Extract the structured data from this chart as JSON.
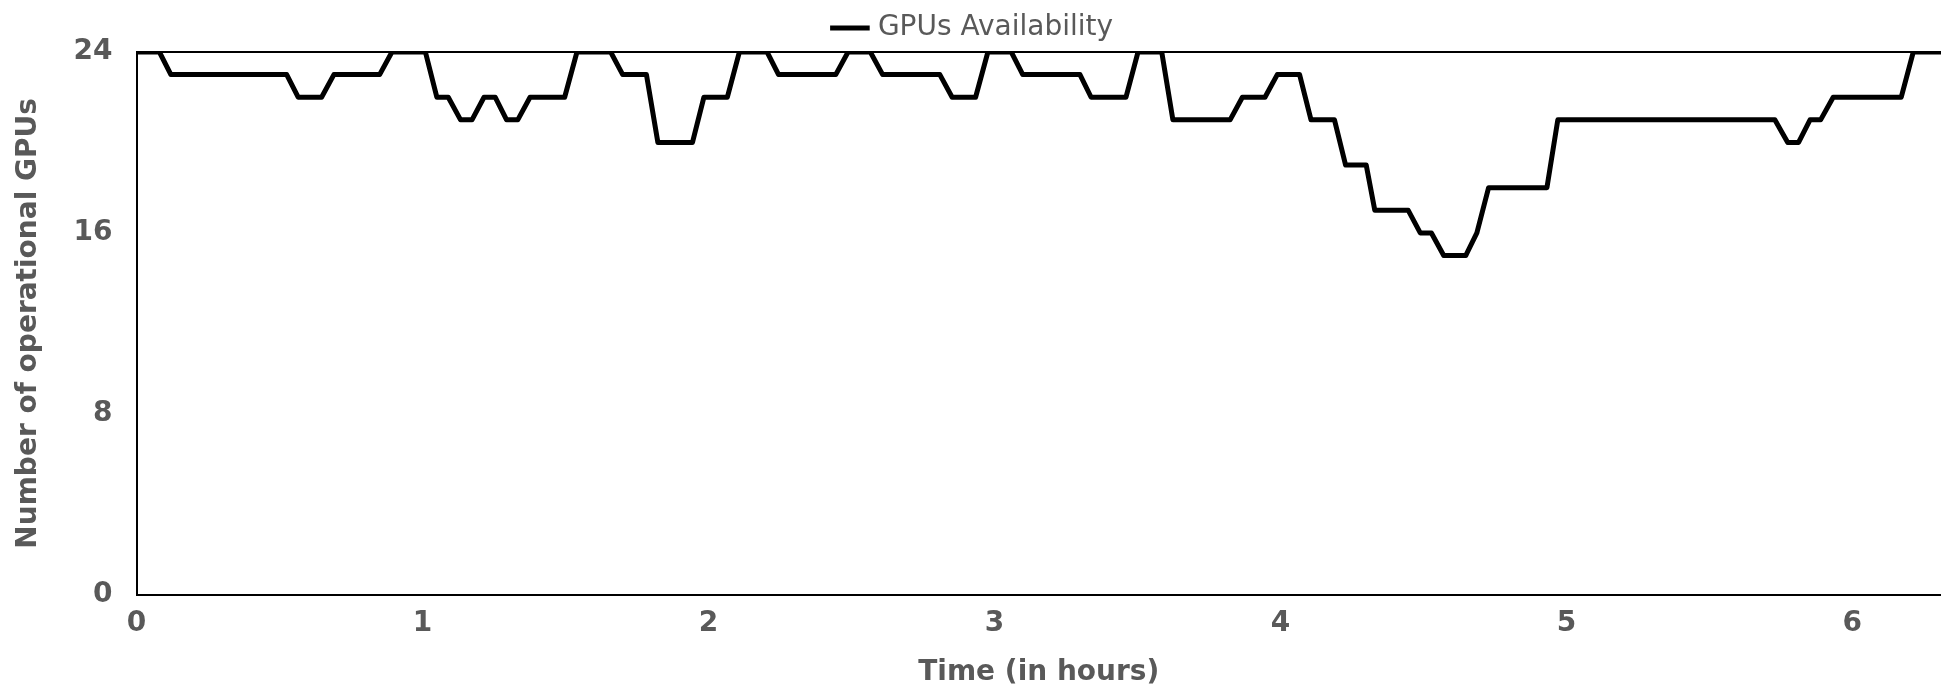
{
  "chart_data": {
    "type": "line",
    "xlabel": "Time (in hours)",
    "ylabel": "Number of operational GPUs",
    "legend": "top",
    "series": [
      {
        "name": "GPUs Availability",
        "color": "#000000",
        "x": [
          0,
          0.08,
          0.12,
          0.525,
          0.565,
          0.647,
          0.69,
          0.85,
          0.893,
          1.01,
          1.05,
          1.09,
          1.133,
          1.173,
          1.215,
          1.254,
          1.294,
          1.333,
          1.376,
          1.497,
          1.54,
          1.658,
          1.7,
          1.783,
          1.823,
          1.944,
          1.984,
          2.066,
          2.108,
          2.205,
          2.245,
          2.445,
          2.488,
          2.566,
          2.609,
          2.809,
          2.852,
          2.934,
          2.977,
          3.059,
          3.099,
          3.299,
          3.338,
          3.46,
          3.502,
          3.585,
          3.624,
          3.824,
          3.867,
          3.946,
          3.989,
          4.067,
          4.107,
          4.189,
          4.228,
          4.3,
          4.33,
          4.447,
          4.489,
          4.528,
          4.571,
          4.648,
          4.687,
          4.728,
          4.932,
          4.97,
          5.729,
          5.774,
          5.812,
          5.852,
          5.889,
          5.933,
          6.171,
          6.213,
          6.31
        ],
        "values": [
          24,
          24,
          23,
          23,
          22,
          22,
          23,
          23,
          24,
          24,
          22,
          22,
          21,
          21,
          22,
          22,
          21,
          21,
          22,
          22,
          24,
          24,
          23,
          23,
          20,
          20,
          22,
          22,
          24,
          24,
          23,
          23,
          24,
          24,
          23,
          23,
          22,
          22,
          24,
          24,
          23,
          23,
          22,
          22,
          24,
          24,
          21,
          21,
          22,
          22,
          23,
          23,
          21,
          21,
          19,
          19,
          17,
          17,
          16,
          16,
          15,
          15,
          16,
          18,
          18,
          21,
          21,
          20,
          20,
          21,
          21,
          22,
          22,
          24,
          24
        ]
      }
    ],
    "xlim": [
      0,
      6.31
    ],
    "xticks": [
      0,
      1,
      2,
      3,
      4,
      5,
      6
    ],
    "ylim": [
      0,
      24
    ],
    "yticks": [
      0,
      8,
      16,
      24
    ],
    "grid": false,
    "marker": "none",
    "line_style": "solid"
  }
}
